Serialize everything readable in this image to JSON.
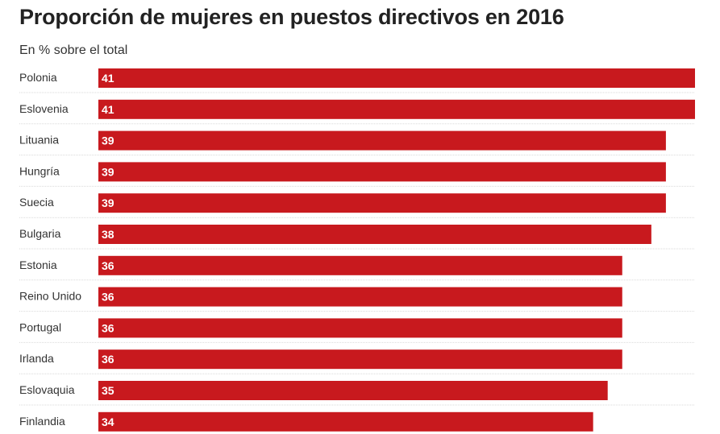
{
  "chart_data": {
    "type": "bar",
    "orientation": "horizontal",
    "title": "Proporción de mujeres en puestos directivos en 2016",
    "subtitle": "En % sobre el total",
    "categories": [
      "Polonia",
      "Eslovenia",
      "Lituania",
      "Hungría",
      "Suecia",
      "Bulgaria",
      "Estonia",
      "Reino Unido",
      "Portugal",
      "Irlanda",
      "Eslovaquia",
      "Finlandia"
    ],
    "values": [
      41,
      41,
      39,
      39,
      39,
      38,
      36,
      36,
      36,
      36,
      35,
      34
    ],
    "xlim": [
      0,
      41
    ],
    "bar_color": "#c8191e",
    "divider_color": "#d9d9d9",
    "grid": false
  }
}
